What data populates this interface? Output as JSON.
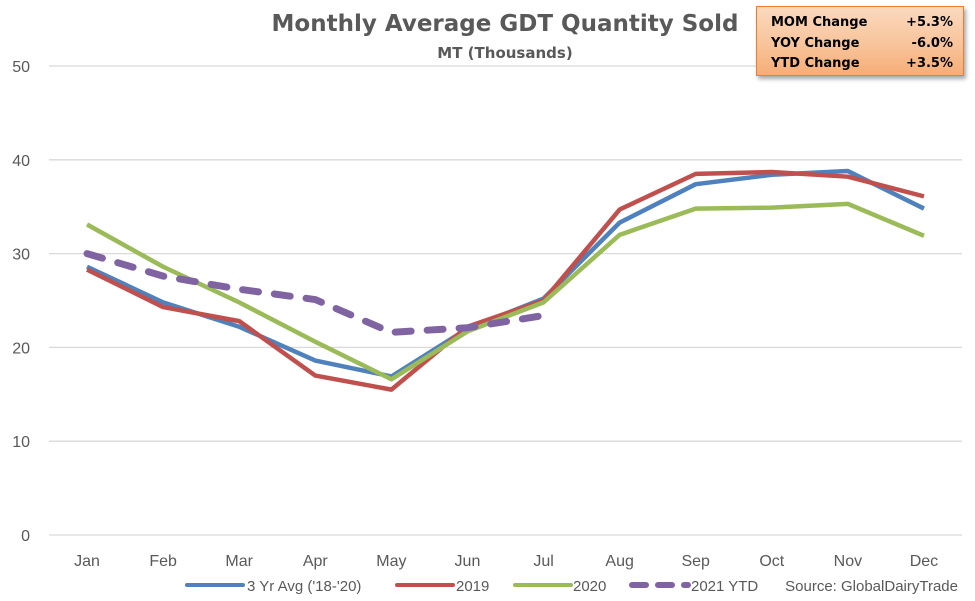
{
  "chart_data": {
    "type": "line",
    "title": "Monthly Average GDT Quantity Sold",
    "subtitle": "MT (Thousands)",
    "xlabel": "",
    "ylabel": "",
    "categories": [
      "Jan",
      "Feb",
      "Mar",
      "Apr",
      "May",
      "Jun",
      "Jul",
      "Aug",
      "Sep",
      "Oct",
      "Nov",
      "Dec"
    ],
    "ylim": [
      0,
      50
    ],
    "yticks": [
      0,
      10,
      20,
      30,
      40,
      50
    ],
    "grid": true,
    "legend_position": "bottom",
    "series": [
      {
        "name": "3 Yr Avg ('18-'20)",
        "color": "#4f81bd",
        "style": "solid",
        "values": [
          28.6,
          24.8,
          22.2,
          18.6,
          16.9,
          22.0,
          25.2,
          33.3,
          37.4,
          38.4,
          38.8,
          34.8
        ]
      },
      {
        "name": "2019",
        "color": "#c0504d",
        "style": "solid",
        "values": [
          28.3,
          24.3,
          22.8,
          17.0,
          15.5,
          22.2,
          25.0,
          34.7,
          38.5,
          38.7,
          38.2,
          36.1
        ]
      },
      {
        "name": "2020",
        "color": "#9bbb59",
        "style": "solid",
        "values": [
          33.1,
          28.6,
          24.8,
          20.6,
          16.6,
          21.7,
          24.8,
          32.0,
          34.8,
          34.9,
          35.3,
          31.9
        ]
      },
      {
        "name": "2021 YTD",
        "color": "#8064a2",
        "style": "dashed",
        "values": [
          30.0,
          27.6,
          26.2,
          25.1,
          21.6,
          22.1,
          23.4,
          null,
          null,
          null,
          null,
          null
        ]
      }
    ],
    "annotations": [
      "Source: GlobalDairyTrade"
    ]
  },
  "stats_box": {
    "rows": [
      {
        "label": "MOM Change",
        "value": "+5.3%"
      },
      {
        "label": "YOY Change",
        "value": "-6.0%"
      },
      {
        "label": "YTD Change",
        "value": "+3.5%"
      }
    ]
  },
  "source": "Source: GlobalDairyTrade"
}
